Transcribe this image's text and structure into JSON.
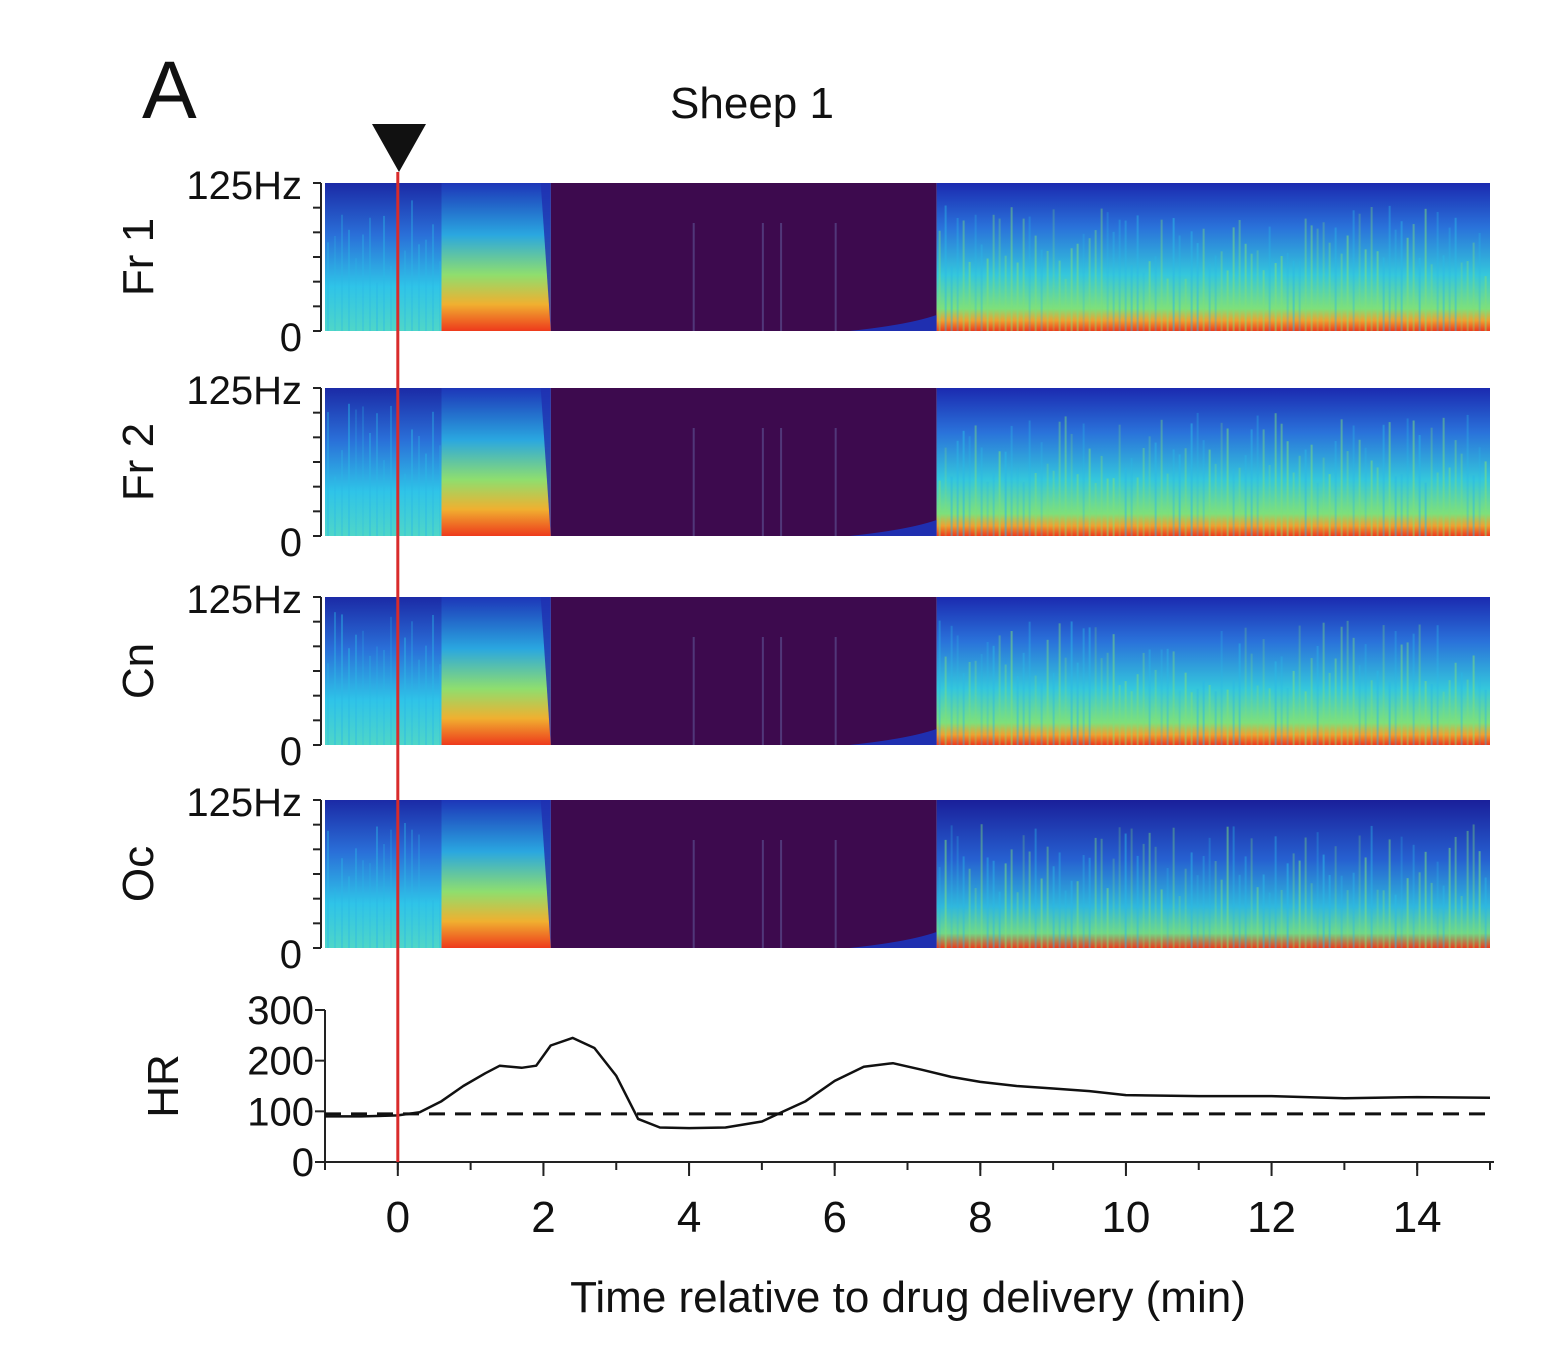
{
  "panel_letter": "A",
  "chart_data": [
    {
      "type": "heatmap",
      "title": "Sheep 1",
      "channels": [
        {
          "label": "Fr 1",
          "ymax_label": "125Hz",
          "ymin_label": "0"
        },
        {
          "label": "Fr 2",
          "ymax_label": "125Hz",
          "ymin_label": "0"
        },
        {
          "label": "Cn",
          "ymax_label": "125Hz",
          "ymin_label": "0"
        },
        {
          "label": "Oc",
          "ymax_label": "125Hz",
          "ymin_label": "0"
        }
      ],
      "ylim": [
        0,
        125
      ],
      "xlim": [
        -1,
        15
      ],
      "segments_min": [
        {
          "from": -1.0,
          "to": 0.6,
          "state": "awake"
        },
        {
          "from": 0.6,
          "to": 2.1,
          "state": "slow-wave"
        },
        {
          "from": 2.1,
          "to": 7.4,
          "state": "suppressed"
        },
        {
          "from": 7.4,
          "to": 15.0,
          "state": "recovery"
        }
      ],
      "marker_time_min": 0,
      "colors": {
        "suppressed": "#3d0a4e",
        "low": "#1f2fb0",
        "mid": "#2bb8e6",
        "high": "#7ee07a",
        "peak": "#ee3a1c",
        "marker": "#d92b2b"
      }
    },
    {
      "type": "line",
      "ylabel": "HR",
      "yticks": [
        0,
        100,
        200,
        300
      ],
      "ylim": [
        0,
        300
      ],
      "xticks": [
        0,
        2,
        4,
        6,
        8,
        10,
        12,
        14
      ],
      "xlim": [
        -1,
        15
      ],
      "xlabel": "Time relative to drug delivery (min)",
      "baseline": 95,
      "x": [
        -1,
        -0.5,
        0,
        0.3,
        0.6,
        0.9,
        1.2,
        1.4,
        1.7,
        1.9,
        2.1,
        2.4,
        2.7,
        3.0,
        3.3,
        3.6,
        4.0,
        4.5,
        5.0,
        5.3,
        5.6,
        6.0,
        6.4,
        6.8,
        7.2,
        7.6,
        8.0,
        8.5,
        9.0,
        9.5,
        10.0,
        11.0,
        12.0,
        13.0,
        14.0,
        15.0
      ],
      "values": [
        90,
        90,
        92,
        98,
        120,
        150,
        175,
        190,
        186,
        190,
        230,
        245,
        225,
        170,
        85,
        68,
        67,
        68,
        80,
        100,
        120,
        160,
        188,
        195,
        182,
        168,
        158,
        150,
        145,
        140,
        132,
        130,
        130,
        126,
        128,
        127
      ]
    }
  ]
}
